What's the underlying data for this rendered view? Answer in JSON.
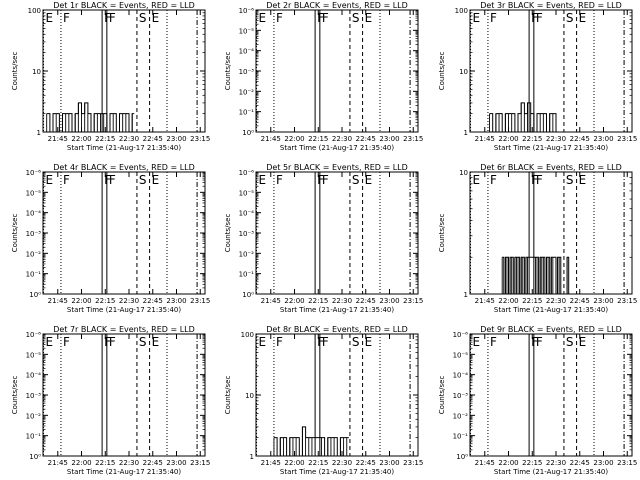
{
  "figure": {
    "colors": {
      "events": "#000000",
      "lld": "#ff0000",
      "background": "#ffffff"
    }
  },
  "chart_data": [
    {
      "type": "line",
      "title": "Det 1r BLACK = Events, RED = LLD",
      "xlabel": "Start Time (21-Aug-17 21:35:40)",
      "ylabel": "Counts/sec",
      "x_ticks": [
        "21:45",
        "22:00",
        "22:15",
        "22:30",
        "22:45",
        "23:00",
        "23:15"
      ],
      "y_scale": "log",
      "y_ticks": [
        "1",
        "10",
        "100"
      ],
      "ylim": [
        1,
        100
      ],
      "flags": [
        {
          "label": "E",
          "time": "21:36",
          "style": "dotted"
        },
        {
          "label": "F",
          "time": "21:47",
          "style": "dotted"
        },
        {
          "label": "F",
          "time": "22:13",
          "style": "solid"
        },
        {
          "label": "F",
          "time": "22:16",
          "style": "solid"
        },
        {
          "label": "S",
          "time": "22:35",
          "style": "dashed"
        },
        {
          "label": "E",
          "time": "22:43",
          "style": "dashed"
        },
        {
          "label": "",
          "time": "22:54",
          "style": "dotted"
        },
        {
          "label": "",
          "time": "23:13",
          "style": "dashdot"
        }
      ],
      "series": [
        {
          "color": "#000000",
          "x": [
            "21:38",
            "21:40",
            "21:42",
            "21:44",
            "21:46",
            "21:48",
            "21:50",
            "21:52",
            "21:54",
            "21:56",
            "21:58",
            "22:00",
            "22:02",
            "22:04",
            "22:06",
            "22:08",
            "22:10",
            "22:12",
            "22:14",
            "22:16",
            "22:18",
            "22:20",
            "22:22",
            "22:24",
            "22:26",
            "22:28",
            "22:30",
            "22:32"
          ],
          "y": [
            2,
            1,
            2,
            2,
            1,
            2,
            2,
            2,
            1,
            2,
            3,
            2,
            3,
            2,
            1,
            2,
            2,
            2,
            2,
            1,
            2,
            2,
            1,
            2,
            2,
            2,
            1,
            2
          ]
        }
      ]
    },
    {
      "type": "line",
      "title": "Det 2r BLACK = Events, RED = LLD",
      "xlabel": "Start Time (21-Aug-17 21:35:40)",
      "ylabel": "Counts/sec",
      "x_ticks": [
        "21:45",
        "22:00",
        "22:15",
        "22:30",
        "22:45",
        "23:00",
        "23:15"
      ],
      "y_scale": "log",
      "y_ticks": [
        "10⁰",
        "10⁻¹",
        "10⁻²",
        "10⁻³",
        "10⁻⁴",
        "10⁻⁵",
        "10⁻⁶"
      ],
      "flags": [
        {
          "label": "E",
          "time": "21:36",
          "style": "dotted"
        },
        {
          "label": "F",
          "time": "21:47",
          "style": "dotted"
        },
        {
          "label": "F",
          "time": "22:13",
          "style": "solid"
        },
        {
          "label": "F",
          "time": "22:16",
          "style": "solid"
        },
        {
          "label": "S",
          "time": "22:35",
          "style": "dashed"
        },
        {
          "label": "E",
          "time": "22:43",
          "style": "dashed"
        },
        {
          "label": "",
          "time": "22:54",
          "style": "dotted"
        },
        {
          "label": "",
          "time": "23:13",
          "style": "dashdot"
        }
      ],
      "series": []
    },
    {
      "type": "line",
      "title": "Det 3r BLACK = Events, RED = LLD",
      "xlabel": "Start Time (21-Aug-17 21:35:40)",
      "ylabel": "Counts/sec",
      "x_ticks": [
        "21:45",
        "22:00",
        "22:15",
        "22:30",
        "22:45",
        "23:00",
        "23:15"
      ],
      "y_scale": "log",
      "y_ticks": [
        "1",
        "10",
        "100"
      ],
      "ylim": [
        1,
        100
      ],
      "flags": [
        {
          "label": "E",
          "time": "21:36",
          "style": "dotted"
        },
        {
          "label": "F",
          "time": "21:47",
          "style": "dotted"
        },
        {
          "label": "F",
          "time": "22:13",
          "style": "solid"
        },
        {
          "label": "F",
          "time": "22:16",
          "style": "solid"
        },
        {
          "label": "S",
          "time": "22:35",
          "style": "dashed"
        },
        {
          "label": "E",
          "time": "22:43",
          "style": "dashed"
        },
        {
          "label": "",
          "time": "22:54",
          "style": "dotted"
        },
        {
          "label": "",
          "time": "23:13",
          "style": "dashdot"
        }
      ],
      "series": [
        {
          "color": "#000000",
          "x": [
            "21:48",
            "21:50",
            "21:52",
            "21:54",
            "21:56",
            "21:58",
            "22:00",
            "22:02",
            "22:04",
            "22:06",
            "22:08",
            "22:10",
            "22:12",
            "22:14",
            "22:16",
            "22:18",
            "22:20",
            "22:22",
            "22:24",
            "22:26",
            "22:28",
            "22:30"
          ],
          "y": [
            2,
            1,
            2,
            2,
            1,
            2,
            2,
            2,
            1,
            2,
            3,
            2,
            3,
            2,
            1,
            2,
            2,
            2,
            1,
            2,
            2,
            1
          ]
        }
      ]
    },
    {
      "type": "line",
      "title": "Det 4r BLACK = Events, RED = LLD",
      "xlabel": "Start Time (21-Aug-17 21:35:40)",
      "ylabel": "Counts/sec",
      "x_ticks": [
        "21:45",
        "22:00",
        "22:15",
        "22:30",
        "22:45",
        "23:00",
        "23:15"
      ],
      "y_scale": "log",
      "y_ticks": [
        "10⁰",
        "10⁻¹",
        "10⁻²",
        "10⁻³",
        "10⁻⁴",
        "10⁻⁵",
        "10⁻⁶"
      ],
      "flags": [
        {
          "label": "E",
          "time": "21:36",
          "style": "dotted"
        },
        {
          "label": "F",
          "time": "21:47",
          "style": "dotted"
        },
        {
          "label": "F",
          "time": "22:13",
          "style": "solid"
        },
        {
          "label": "F",
          "time": "22:16",
          "style": "solid"
        },
        {
          "label": "S",
          "time": "22:35",
          "style": "dashed"
        },
        {
          "label": "E",
          "time": "22:43",
          "style": "dashed"
        },
        {
          "label": "",
          "time": "22:54",
          "style": "dotted"
        },
        {
          "label": "",
          "time": "23:13",
          "style": "dashdot"
        }
      ],
      "series": []
    },
    {
      "type": "line",
      "title": "Det 5r BLACK = Events, RED = LLD",
      "xlabel": "Start Time (21-Aug-17 21:35:40)",
      "ylabel": "Counts/sec",
      "x_ticks": [
        "21:45",
        "22:00",
        "22:15",
        "22:30",
        "22:45",
        "23:00",
        "23:15"
      ],
      "y_scale": "log",
      "y_ticks": [
        "10⁰",
        "10⁻¹",
        "10⁻²",
        "10⁻³",
        "10⁻⁴",
        "10⁻⁵",
        "10⁻⁶"
      ],
      "flags": [
        {
          "label": "E",
          "time": "21:36",
          "style": "dotted"
        },
        {
          "label": "F",
          "time": "21:47",
          "style": "dotted"
        },
        {
          "label": "F",
          "time": "22:13",
          "style": "solid"
        },
        {
          "label": "F",
          "time": "22:16",
          "style": "solid"
        },
        {
          "label": "S",
          "time": "22:35",
          "style": "dashed"
        },
        {
          "label": "E",
          "time": "22:43",
          "style": "dashed"
        },
        {
          "label": "",
          "time": "22:54",
          "style": "dotted"
        },
        {
          "label": "",
          "time": "23:13",
          "style": "dashdot"
        }
      ],
      "series": []
    },
    {
      "type": "line",
      "title": "Det 6r BLACK = Events, RED = LLD",
      "xlabel": "Start Time (21-Aug-17 21:35:40)",
      "ylabel": "Counts/sec",
      "x_ticks": [
        "21:45",
        "22:00",
        "22:15",
        "22:30",
        "22:45",
        "23:00",
        "23:15"
      ],
      "y_scale": "log",
      "y_ticks": [
        "1",
        "10"
      ],
      "ylim": [
        1,
        10
      ],
      "flags": [
        {
          "label": "E",
          "time": "21:36",
          "style": "dotted"
        },
        {
          "label": "F",
          "time": "21:47",
          "style": "dotted"
        },
        {
          "label": "F",
          "time": "22:13",
          "style": "solid"
        },
        {
          "label": "F",
          "time": "22:16",
          "style": "solid"
        },
        {
          "label": "S",
          "time": "22:35",
          "style": "dashed"
        },
        {
          "label": "E",
          "time": "22:43",
          "style": "dashed"
        },
        {
          "label": "",
          "time": "22:54",
          "style": "dotted"
        },
        {
          "label": "",
          "time": "23:13",
          "style": "dashdot"
        }
      ],
      "series": [
        {
          "color": "#000000",
          "x": [
            "21:56",
            "21:57",
            "21:58",
            "21:59",
            "22:00",
            "22:01",
            "22:02",
            "22:03",
            "22:04",
            "22:05",
            "22:06",
            "22:07",
            "22:08",
            "22:09",
            "22:10",
            "22:11",
            "22:12",
            "22:17",
            "22:18",
            "22:19",
            "22:20",
            "22:21",
            "22:22",
            "22:23",
            "22:24",
            "22:25",
            "22:26",
            "22:27",
            "22:28",
            "22:30",
            "22:31",
            "22:32",
            "22:33",
            "22:37",
            "22:38"
          ],
          "y": [
            2,
            1,
            2,
            2,
            1,
            2,
            2,
            1,
            2,
            2,
            2,
            1,
            2,
            2,
            1,
            2,
            2,
            2,
            2,
            1,
            2,
            2,
            2,
            1,
            2,
            2,
            1,
            2,
            2,
            1,
            2,
            2,
            1,
            2,
            1
          ]
        }
      ]
    },
    {
      "type": "line",
      "title": "Det 7r BLACK = Events, RED = LLD",
      "xlabel": "Start Time (21-Aug-17 21:35:40)",
      "ylabel": "Counts/sec",
      "x_ticks": [
        "21:45",
        "22:00",
        "22:15",
        "22:30",
        "22:45",
        "23:00",
        "23:15"
      ],
      "y_scale": "log",
      "y_ticks": [
        "10⁰",
        "10⁻¹",
        "10⁻²",
        "10⁻³",
        "10⁻⁴",
        "10⁻⁵",
        "10⁻⁶"
      ],
      "flags": [
        {
          "label": "E",
          "time": "21:36",
          "style": "dotted"
        },
        {
          "label": "F",
          "time": "21:47",
          "style": "dotted"
        },
        {
          "label": "F",
          "time": "22:13",
          "style": "solid"
        },
        {
          "label": "F",
          "time": "22:16",
          "style": "solid"
        },
        {
          "label": "S",
          "time": "22:35",
          "style": "dashed"
        },
        {
          "label": "E",
          "time": "22:43",
          "style": "dashed"
        },
        {
          "label": "",
          "time": "22:54",
          "style": "dotted"
        },
        {
          "label": "",
          "time": "23:13",
          "style": "dashdot"
        }
      ],
      "series": []
    },
    {
      "type": "line",
      "title": "Det 8r BLACK = Events, RED = LLD",
      "xlabel": "Start Time (21-Aug-17 21:35:40)",
      "ylabel": "Counts/sec",
      "x_ticks": [
        "21:45",
        "22:00",
        "22:15",
        "22:30",
        "22:45",
        "23:00",
        "23:15"
      ],
      "y_scale": "log",
      "y_ticks": [
        "1",
        "10",
        "100"
      ],
      "ylim": [
        1,
        100
      ],
      "flags": [
        {
          "label": "E",
          "time": "21:36",
          "style": "dotted"
        },
        {
          "label": "F",
          "time": "21:47",
          "style": "dotted"
        },
        {
          "label": "F",
          "time": "22:13",
          "style": "solid"
        },
        {
          "label": "F",
          "time": "22:16",
          "style": "solid"
        },
        {
          "label": "S",
          "time": "22:35",
          "style": "dashed"
        },
        {
          "label": "E",
          "time": "22:43",
          "style": "dashed"
        },
        {
          "label": "",
          "time": "22:54",
          "style": "dotted"
        },
        {
          "label": "",
          "time": "23:13",
          "style": "dashdot"
        }
      ],
      "series": [
        {
          "color": "#000000",
          "x": [
            "21:47",
            "21:49",
            "21:51",
            "21:53",
            "21:55",
            "21:57",
            "21:59",
            "22:01",
            "22:03",
            "22:05",
            "22:07",
            "22:09",
            "22:11",
            "22:17",
            "22:19",
            "22:21",
            "22:23",
            "22:25",
            "22:27",
            "22:29",
            "22:31",
            "22:33"
          ],
          "y": [
            2,
            1,
            2,
            2,
            1,
            2,
            2,
            2,
            1,
            3,
            2,
            2,
            2,
            2,
            1,
            2,
            2,
            2,
            1,
            2,
            2,
            2
          ]
        }
      ]
    },
    {
      "type": "line",
      "title": "Det 9r BLACK = Events, RED = LLD",
      "xlabel": "Start Time (21-Aug-17 21:35:40)",
      "ylabel": "Counts/sec",
      "x_ticks": [
        "21:45",
        "22:00",
        "22:15",
        "22:30",
        "22:45",
        "23:00",
        "23:15"
      ],
      "y_scale": "log",
      "y_ticks": [
        "10⁰",
        "10⁻¹",
        "10⁻²",
        "10⁻³",
        "10⁻⁴",
        "10⁻⁵",
        "10⁻⁶"
      ],
      "flags": [
        {
          "label": "E",
          "time": "21:36",
          "style": "dotted"
        },
        {
          "label": "F",
          "time": "21:47",
          "style": "dotted"
        },
        {
          "label": "F",
          "time": "22:13",
          "style": "solid"
        },
        {
          "label": "F",
          "time": "22:16",
          "style": "solid"
        },
        {
          "label": "S",
          "time": "22:35",
          "style": "dashed"
        },
        {
          "label": "E",
          "time": "22:43",
          "style": "dashed"
        },
        {
          "label": "",
          "time": "22:54",
          "style": "dotted"
        },
        {
          "label": "",
          "time": "23:13",
          "style": "dashdot"
        }
      ],
      "series": []
    }
  ]
}
